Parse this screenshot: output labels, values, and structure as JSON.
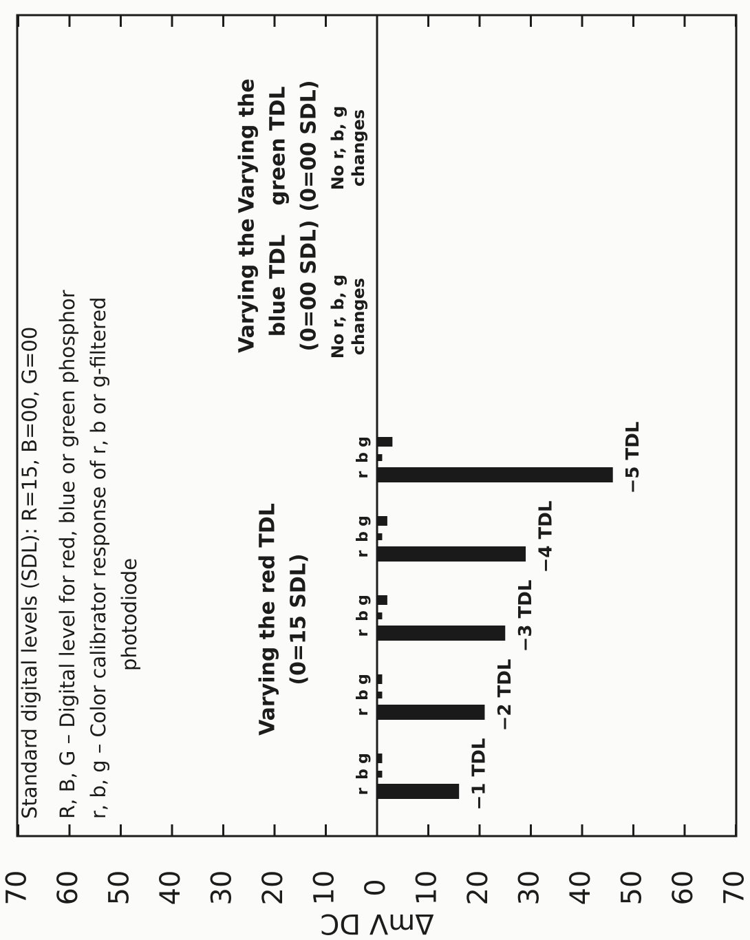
{
  "chart_data": {
    "type": "bar",
    "legend_lines": [
      "Standard digital levels (SDL): R=15, B=00, G=00",
      "R, B, G – Digital level for red, blue or green phosphor",
      "r, b, g – Color calibrator response of r, b or g-filtered",
      "photodiode"
    ],
    "ylabel": "ΔmV DC",
    "annotations": {
      "red": [
        "Varying the red TDL",
        "(0=15 SDL)"
      ],
      "blue": [
        "Varying the",
        "blue TDL",
        "(0=00 SDL)"
      ],
      "blue_note": [
        "No r, b, g",
        "changes"
      ],
      "green": [
        "Varying the",
        "green TDL",
        "(0=00 SDL)"
      ],
      "green_note": [
        "No r, b, g",
        "changes"
      ]
    },
    "categories": [
      "−1 TDL",
      "−2 TDL",
      "−3 TDL",
      "−4 TDL",
      "−5 TDL"
    ],
    "series": [
      {
        "name": "r",
        "color": "#1a1a1a",
        "values": [
          -16,
          -21,
          -25,
          -29,
          -46
        ]
      },
      {
        "name": "b",
        "color": "#1a1a1a",
        "values": [
          -1,
          -1,
          -1,
          -1,
          -1
        ]
      },
      {
        "name": "g",
        "color": "#1a1a1a",
        "values": [
          -1,
          -1,
          -2,
          -2,
          -3
        ]
      }
    ],
    "ylim": [
      70,
      -70
    ],
    "yticks": [
      70,
      60,
      50,
      40,
      30,
      20,
      10,
      0,
      {
        "value": -10,
        "label": "10"
      },
      {
        "value": -20,
        "label": "20"
      },
      {
        "value": -30,
        "label": "30"
      },
      {
        "value": -40,
        "label": "40"
      },
      {
        "value": -50,
        "label": "50"
      },
      {
        "value": -60,
        "label": "60"
      },
      {
        "value": -70,
        "label": "70"
      }
    ]
  }
}
